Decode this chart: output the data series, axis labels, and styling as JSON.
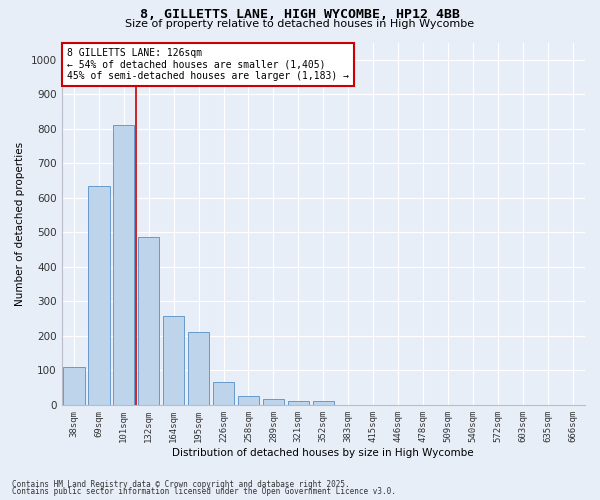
{
  "title": "8, GILLETTS LANE, HIGH WYCOMBE, HP12 4BB",
  "subtitle": "Size of property relative to detached houses in High Wycombe",
  "xlabel": "Distribution of detached houses by size in High Wycombe",
  "ylabel": "Number of detached properties",
  "categories": [
    "38sqm",
    "69sqm",
    "101sqm",
    "132sqm",
    "164sqm",
    "195sqm",
    "226sqm",
    "258sqm",
    "289sqm",
    "321sqm",
    "352sqm",
    "383sqm",
    "415sqm",
    "446sqm",
    "478sqm",
    "509sqm",
    "540sqm",
    "572sqm",
    "603sqm",
    "635sqm",
    "666sqm"
  ],
  "values": [
    110,
    635,
    810,
    485,
    258,
    212,
    65,
    27,
    17,
    12,
    10,
    0,
    0,
    0,
    0,
    0,
    0,
    0,
    0,
    0,
    0
  ],
  "bar_color": "#bdd4ea",
  "bar_edge_color": "#6699cc",
  "vline_color": "#cc0000",
  "annotation_text": "8 GILLETTS LANE: 126sqm\n← 54% of detached houses are smaller (1,405)\n45% of semi-detached houses are larger (1,183) →",
  "annotation_box_color": "#ffffff",
  "annotation_box_edge": "#cc0000",
  "ylim": [
    0,
    1050
  ],
  "yticks": [
    0,
    100,
    200,
    300,
    400,
    500,
    600,
    700,
    800,
    900,
    1000
  ],
  "background_color": "#e8eef8",
  "plot_background": "#e8eef8",
  "footer_line1": "Contains HM Land Registry data © Crown copyright and database right 2025.",
  "footer_line2": "Contains public sector information licensed under the Open Government Licence v3.0."
}
